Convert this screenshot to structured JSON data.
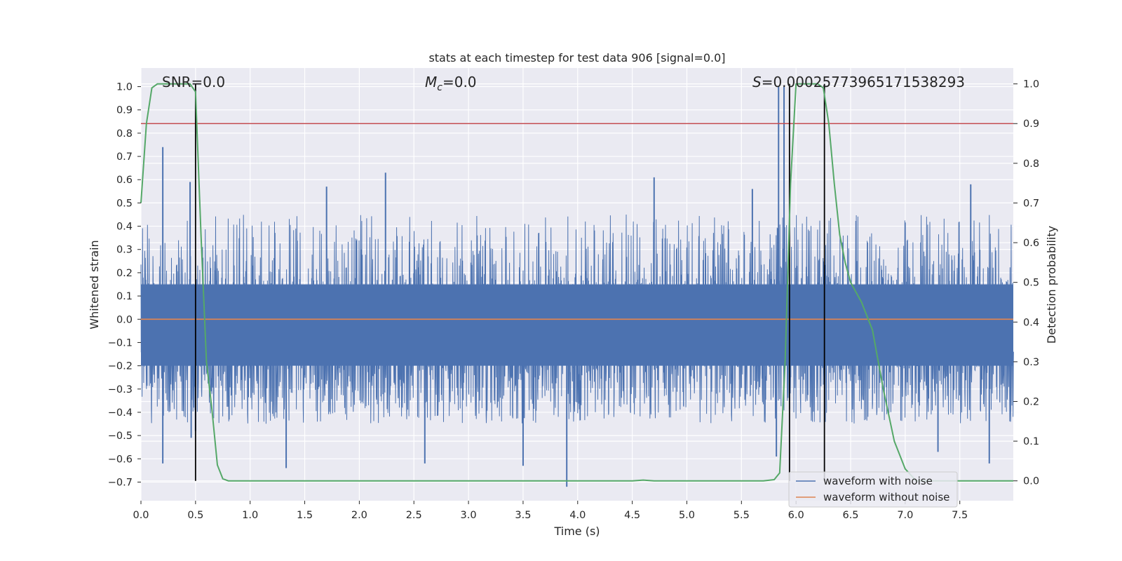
{
  "chart_data": {
    "type": "line",
    "title": "stats at each timestep for test data 906 [signal=0.0]",
    "xlabel": "Time (s)",
    "ylabel": "Whitened strain",
    "y2label": "Detection probability",
    "xlim": [
      0.0,
      7.99
    ],
    "ylim": [
      -0.78,
      1.08
    ],
    "y2lim": [
      -0.05,
      1.04
    ],
    "xticks": [
      0.0,
      0.5,
      1.0,
      1.5,
      2.0,
      2.5,
      3.0,
      3.5,
      4.0,
      4.5,
      5.0,
      5.5,
      6.0,
      6.5,
      7.0,
      7.5
    ],
    "xtick_labels": [
      "0.0",
      "0.5",
      "1.0",
      "1.5",
      "2.0",
      "2.5",
      "3.0",
      "3.5",
      "4.0",
      "4.5",
      "5.0",
      "5.5",
      "6.0",
      "6.5",
      "7.0",
      "7.5"
    ],
    "yticks": [
      1.0,
      0.9,
      0.8,
      0.7,
      0.6,
      0.5,
      0.4,
      0.3,
      0.2,
      0.1,
      0.0,
      -0.1,
      -0.2,
      -0.3,
      -0.4,
      -0.5,
      -0.6,
      -0.7
    ],
    "ytick_labels": [
      "1.0",
      "0.9",
      "0.8",
      "0.7",
      "0.6",
      "0.5",
      "0.4",
      "0.3",
      "0.2",
      "0.1",
      "0.0",
      "−0.1",
      "−0.2",
      "−0.3",
      "−0.4",
      "−0.5",
      "−0.6",
      "−0.7"
    ],
    "y2ticks": [
      1.0,
      0.9,
      0.8,
      0.7,
      0.6,
      0.5,
      0.4,
      0.3,
      0.2,
      0.1,
      0.0
    ],
    "y2tick_labels": [
      "1.0",
      "0.9",
      "0.8",
      "0.7",
      "0.6",
      "0.5",
      "0.4",
      "0.3",
      "0.2",
      "0.1",
      "0.0"
    ],
    "grid": true,
    "annotations": {
      "snr_label": "SNR=0.0",
      "mc_symbol": "M",
      "mc_sub": "c",
      "mc_value": "=0.0",
      "s_symbol": "S",
      "s_value": "=0.00025773965171538293"
    },
    "threshold_prob": 0.9,
    "vertical_markers_s": [
      0.5,
      5.94,
      6.26
    ],
    "noise_envelope": {
      "band_low": -0.2,
      "band_high": 0.15,
      "typical_peak_high": 0.45,
      "typical_peak_low": -0.45,
      "notable_spikes": [
        {
          "t": 0.2,
          "value": -0.62
        },
        {
          "t": 0.2,
          "value": 0.74
        },
        {
          "t": 0.45,
          "value": 0.59
        },
        {
          "t": 0.46,
          "value": -0.51
        },
        {
          "t": 0.5,
          "value": -0.48
        },
        {
          "t": 1.33,
          "value": -0.64
        },
        {
          "t": 1.7,
          "value": 0.57
        },
        {
          "t": 2.24,
          "value": 0.63
        },
        {
          "t": 2.6,
          "value": -0.62
        },
        {
          "t": 3.5,
          "value": -0.63
        },
        {
          "t": 3.9,
          "value": -0.72
        },
        {
          "t": 4.7,
          "value": 0.61
        },
        {
          "t": 5.6,
          "value": 0.56
        },
        {
          "t": 5.84,
          "value": 1.0
        },
        {
          "t": 5.89,
          "value": 1.0
        },
        {
          "t": 5.82,
          "value": -0.59
        },
        {
          "t": 7.3,
          "value": -0.57
        },
        {
          "t": 7.6,
          "value": 0.58
        },
        {
          "t": 7.77,
          "value": -0.62
        }
      ]
    },
    "series": [
      {
        "name": "waveform with noise",
        "color": "#4c72b0",
        "axis": "left",
        "kind": "noise"
      },
      {
        "name": "waveform without noise",
        "color": "#dd8452",
        "axis": "left",
        "x": [
          0.0,
          7.99
        ],
        "y": [
          0.0,
          0.0
        ]
      },
      {
        "name": "Detection probability",
        "color": "#55a868",
        "axis": "right",
        "x": [
          0.0,
          0.05,
          0.1,
          0.15,
          0.2,
          0.3,
          0.4,
          0.45,
          0.5,
          0.55,
          0.6,
          0.65,
          0.7,
          0.75,
          0.8,
          1.0,
          2.0,
          3.0,
          4.0,
          4.5,
          4.6,
          4.7,
          5.0,
          5.5,
          5.7,
          5.8,
          5.85,
          5.9,
          5.95,
          6.0,
          6.05,
          6.1,
          6.15,
          6.2,
          6.25,
          6.3,
          6.35,
          6.4,
          6.45,
          6.5,
          6.6,
          6.7,
          6.8,
          6.9,
          7.0,
          7.1,
          7.5,
          7.99
        ],
        "y": [
          0.7,
          0.9,
          0.99,
          1.0,
          1.0,
          1.0,
          1.0,
          1.0,
          0.98,
          0.62,
          0.3,
          0.18,
          0.04,
          0.005,
          0.0,
          0.0,
          0.0,
          0.0,
          0.0,
          0.0,
          0.002,
          0.0,
          0.0,
          0.0,
          0.0,
          0.003,
          0.02,
          0.3,
          0.75,
          1.0,
          1.0,
          1.0,
          1.0,
          1.0,
          0.99,
          0.9,
          0.75,
          0.62,
          0.55,
          0.5,
          0.45,
          0.38,
          0.23,
          0.1,
          0.03,
          0.0,
          0.0,
          0.0
        ]
      }
    ],
    "threshold_color": "#c44e52",
    "marker_color": "#000000",
    "legend_position": "lower-right"
  }
}
